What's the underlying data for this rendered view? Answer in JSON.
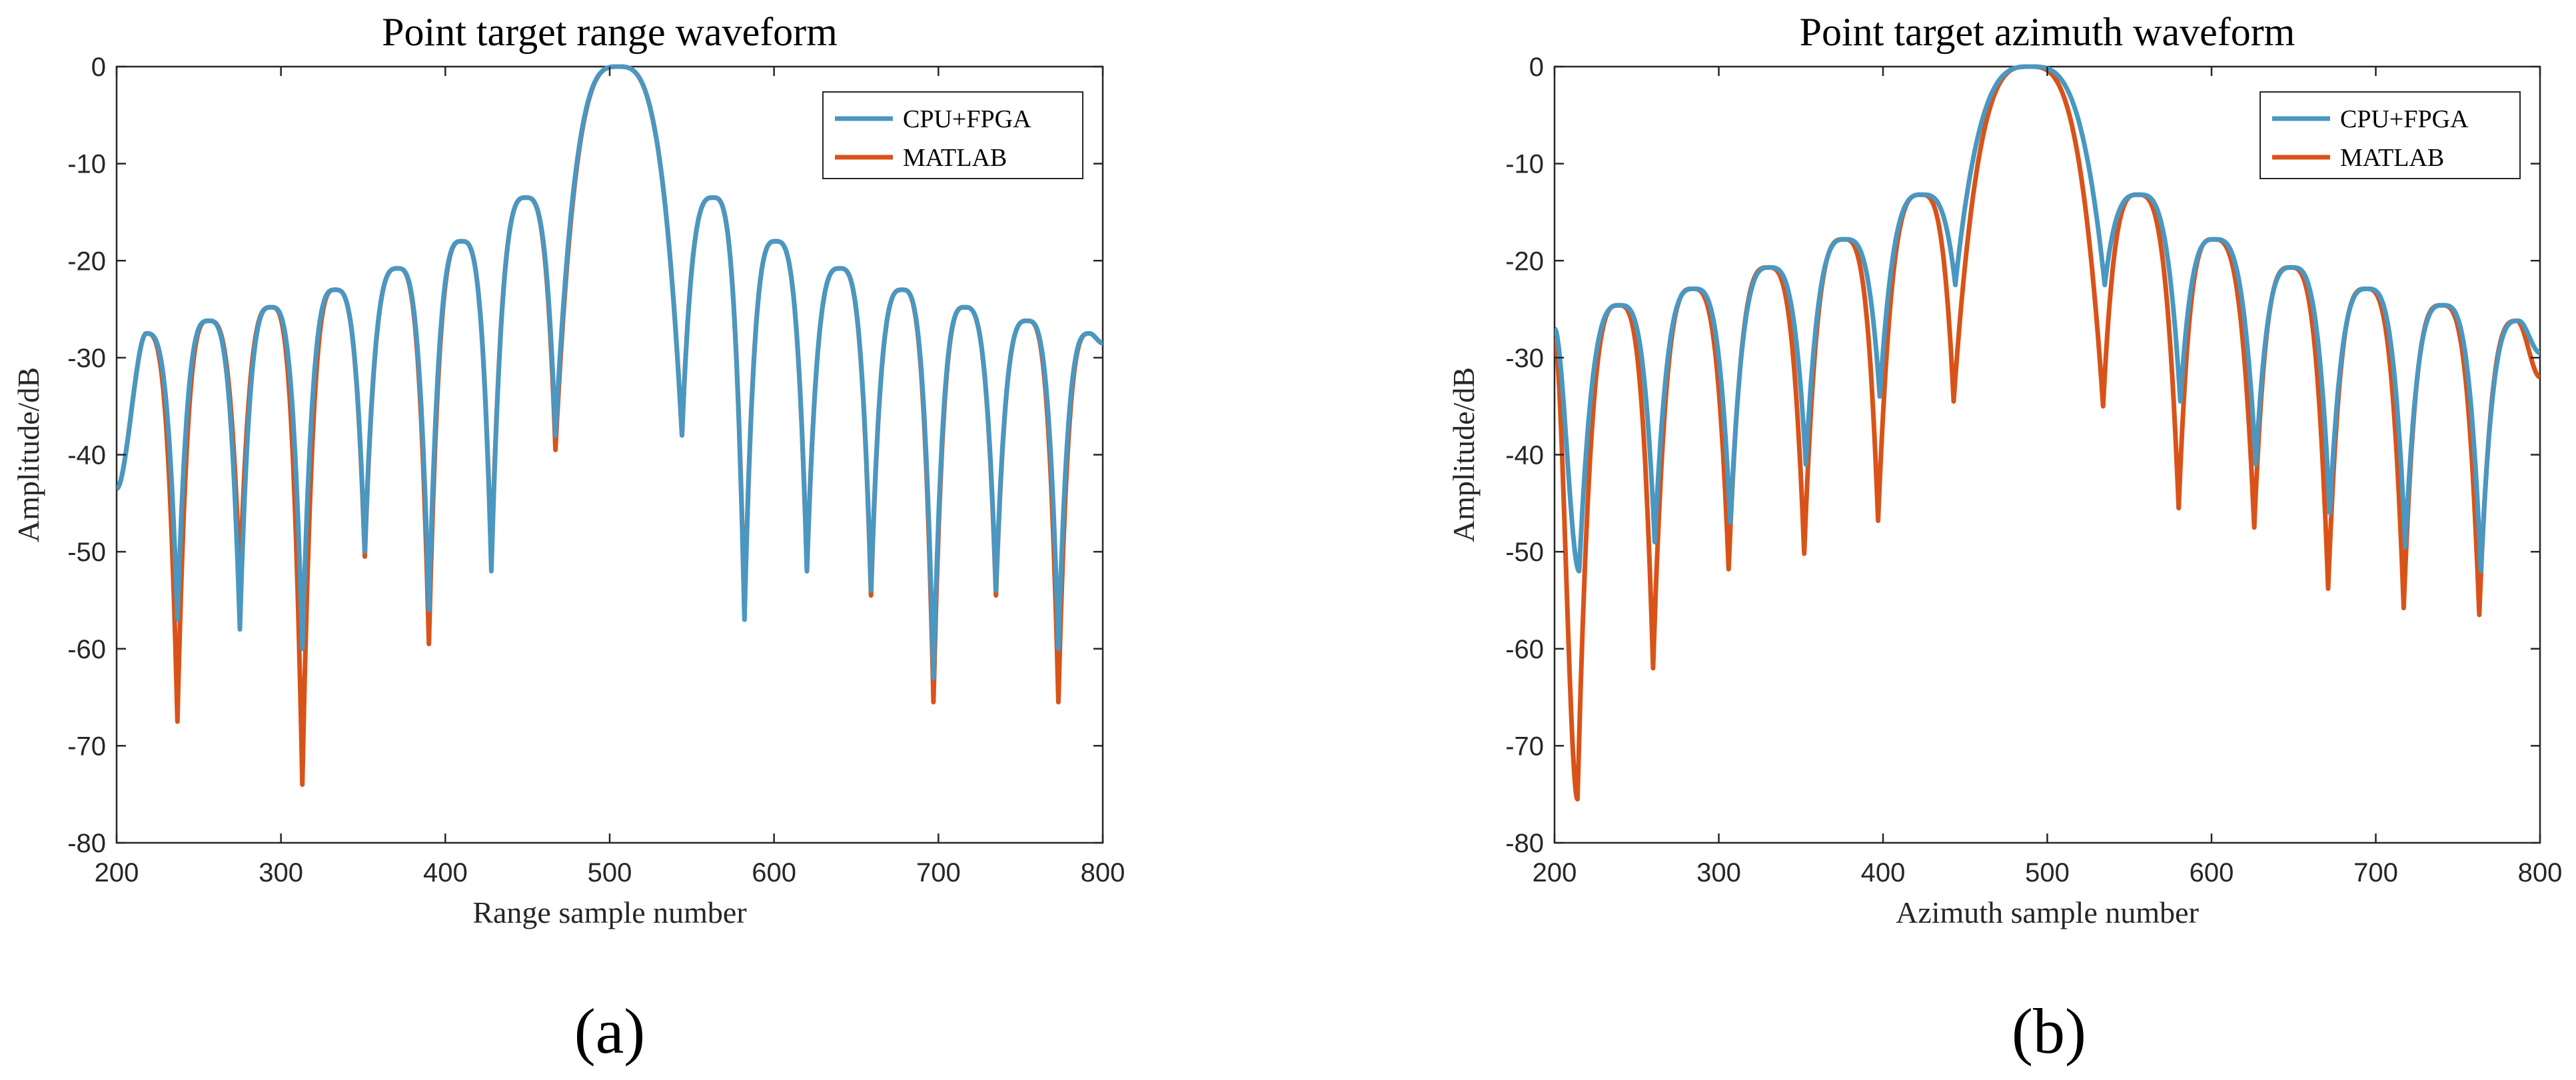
{
  "chart_data": [
    {
      "type": "line",
      "title": "Point target range waveform",
      "xlabel": "Range sample number",
      "ylabel": "Amplitude/dB",
      "xlim": [
        200,
        800
      ],
      "ylim": [
        -80,
        0
      ],
      "xticks": [
        200,
        300,
        400,
        500,
        600,
        700,
        800
      ],
      "yticks": [
        0,
        -10,
        -20,
        -30,
        -40,
        -50,
        -60,
        -70,
        -80
      ],
      "caption": "(a)",
      "legend": "top-right",
      "series": [
        {
          "name": "CPU+FPGA",
          "color": "#4A97C1",
          "main_lobe": {
            "center": 505,
            "half_width": 38
          },
          "nulls": [
            {
              "x": 237,
              "depth": -57
            },
            {
              "x": 275,
              "depth": -58
            },
            {
              "x": 313,
              "depth": -60
            },
            {
              "x": 351,
              "depth": -50
            },
            {
              "x": 390,
              "depth": -56
            },
            {
              "x": 428,
              "depth": -52
            },
            {
              "x": 467,
              "depth": -38
            },
            {
              "x": 544,
              "depth": -38
            },
            {
              "x": 582,
              "depth": -57
            },
            {
              "x": 620,
              "depth": -52
            },
            {
              "x": 659,
              "depth": -54
            },
            {
              "x": 697,
              "depth": -63
            },
            {
              "x": 735,
              "depth": -54
            },
            {
              "x": 773,
              "depth": -60
            }
          ],
          "peaks": [
            {
              "x": 218,
              "y": -27.5
            },
            {
              "x": 256,
              "y": -26.2
            },
            {
              "x": 294,
              "y": -24.8
            },
            {
              "x": 333,
              "y": -23.0
            },
            {
              "x": 371,
              "y": -20.8
            },
            {
              "x": 410,
              "y": -18.0
            },
            {
              "x": 449,
              "y": -13.5
            },
            {
              "x": 563,
              "y": -13.5
            },
            {
              "x": 601,
              "y": -18.0
            },
            {
              "x": 640,
              "y": -20.8
            },
            {
              "x": 678,
              "y": -23.0
            },
            {
              "x": 716,
              "y": -24.8
            },
            {
              "x": 754,
              "y": -26.2
            },
            {
              "x": 792,
              "y": -27.5
            }
          ],
          "start_y": -43.5,
          "end_y": -28.5
        },
        {
          "name": "MATLAB",
          "color": "#D95319",
          "main_lobe": {
            "center": 505,
            "half_width": 38
          },
          "nulls": [
            {
              "x": 237,
              "depth": -67.5
            },
            {
              "x": 275,
              "depth": -53
            },
            {
              "x": 313,
              "depth": -74
            },
            {
              "x": 351,
              "depth": -50.5
            },
            {
              "x": 390,
              "depth": -59.5
            },
            {
              "x": 428,
              "depth": -51.5
            },
            {
              "x": 467,
              "depth": -39.5
            },
            {
              "x": 544,
              "depth": -38
            },
            {
              "x": 582,
              "depth": -56.5
            },
            {
              "x": 620,
              "depth": -52
            },
            {
              "x": 659,
              "depth": -54.5
            },
            {
              "x": 697,
              "depth": -65.5
            },
            {
              "x": 735,
              "depth": -54.5
            },
            {
              "x": 773,
              "depth": -65.5
            }
          ],
          "peaks": [
            {
              "x": 218,
              "y": -27.5
            },
            {
              "x": 256,
              "y": -26.2
            },
            {
              "x": 294,
              "y": -24.8
            },
            {
              "x": 333,
              "y": -23.0
            },
            {
              "x": 371,
              "y": -20.8
            },
            {
              "x": 410,
              "y": -18.0
            },
            {
              "x": 449,
              "y": -13.5
            },
            {
              "x": 563,
              "y": -13.5
            },
            {
              "x": 601,
              "y": -18.0
            },
            {
              "x": 640,
              "y": -20.8
            },
            {
              "x": 678,
              "y": -23.0
            },
            {
              "x": 716,
              "y": -24.8
            },
            {
              "x": 754,
              "y": -26.2
            },
            {
              "x": 792,
              "y": -27.5
            }
          ],
          "start_y": -43.5,
          "end_y": -28.5
        }
      ]
    },
    {
      "type": "line",
      "title": "Point target azimuth waveform",
      "xlabel": "Azimuth sample number",
      "ylabel": "Amplitude/dB",
      "xlim": [
        200,
        800
      ],
      "ylim": [
        -80,
        0
      ],
      "xticks": [
        200,
        300,
        400,
        500,
        600,
        700,
        800
      ],
      "yticks": [
        0,
        -10,
        -20,
        -30,
        -40,
        -50,
        -60,
        -70,
        -80
      ],
      "caption": "(b)",
      "legend": "top-right",
      "series": [
        {
          "name": "CPU+FPGA",
          "color": "#4A97C1",
          "main_lobe": {
            "center": 490,
            "half_width": 45
          },
          "nulls": [
            {
              "x": 215,
              "depth": -52
            },
            {
              "x": 261,
              "depth": -49
            },
            {
              "x": 307,
              "depth": -47
            },
            {
              "x": 353,
              "depth": -41
            },
            {
              "x": 398,
              "depth": -34
            },
            {
              "x": 444,
              "depth": -22.5
            },
            {
              "x": 535,
              "depth": -22.5
            },
            {
              "x": 581,
              "depth": -34.5
            },
            {
              "x": 627,
              "depth": -41
            },
            {
              "x": 672,
              "depth": -46
            },
            {
              "x": 718,
              "depth": -49.5
            },
            {
              "x": 764,
              "depth": -52
            }
          ],
          "peaks": [
            {
              "x": 240,
              "y": -24.6
            },
            {
              "x": 285,
              "y": -22.9
            },
            {
              "x": 331,
              "y": -20.7
            },
            {
              "x": 377,
              "y": -17.8
            },
            {
              "x": 424,
              "y": -13.2
            },
            {
              "x": 556,
              "y": -13.2
            },
            {
              "x": 602,
              "y": -17.8
            },
            {
              "x": 649,
              "y": -20.7
            },
            {
              "x": 695,
              "y": -22.9
            },
            {
              "x": 741,
              "y": -24.6
            },
            {
              "x": 787,
              "y": -26.2
            }
          ],
          "start_y": -27.0,
          "end_y": -29.5
        },
        {
          "name": "MATLAB",
          "color": "#D95319",
          "main_lobe": {
            "center": 489,
            "half_width": 46
          },
          "nulls": [
            {
              "x": 214,
              "depth": -75.5
            },
            {
              "x": 260,
              "depth": -62
            },
            {
              "x": 306,
              "depth": -51.8
            },
            {
              "x": 352,
              "depth": -50.2
            },
            {
              "x": 397,
              "depth": -46.8
            },
            {
              "x": 443,
              "depth": -34.5
            },
            {
              "x": 534,
              "depth": -35
            },
            {
              "x": 580,
              "depth": -45.5
            },
            {
              "x": 626,
              "depth": -47.5
            },
            {
              "x": 671,
              "depth": -53.8
            },
            {
              "x": 717,
              "depth": -55.8
            },
            {
              "x": 763,
              "depth": -56.5
            }
          ],
          "peaks": [
            {
              "x": 239,
              "y": -24.6
            },
            {
              "x": 284,
              "y": -22.9
            },
            {
              "x": 330,
              "y": -20.7
            },
            {
              "x": 376,
              "y": -17.8
            },
            {
              "x": 423,
              "y": -13.2
            },
            {
              "x": 555,
              "y": -13.2
            },
            {
              "x": 601,
              "y": -17.8
            },
            {
              "x": 648,
              "y": -20.7
            },
            {
              "x": 694,
              "y": -22.9
            },
            {
              "x": 740,
              "y": -24.6
            },
            {
              "x": 786,
              "y": -26.2
            }
          ],
          "start_y": -28.0,
          "end_y": -32.0
        }
      ]
    }
  ]
}
